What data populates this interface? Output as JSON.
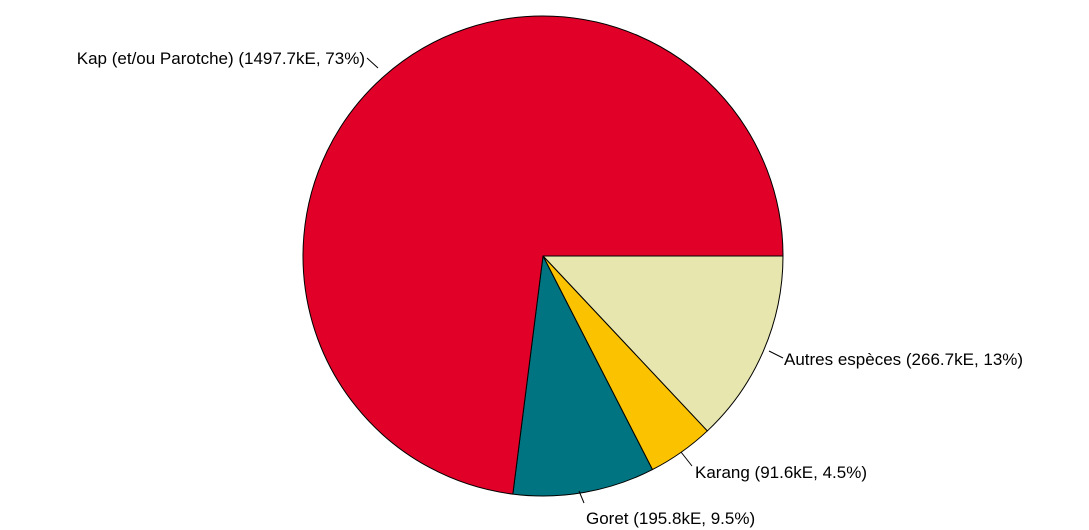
{
  "chart_data": {
    "type": "pie",
    "title": "",
    "start_angle_deg": 0,
    "direction": "clockwise",
    "slices": [
      {
        "name": "Autres espèces",
        "value": 266.7,
        "percent": 13,
        "label": "Autres espèces (266.7kE, 13%)",
        "color": "#E6E6AE"
      },
      {
        "name": "Karang",
        "value": 91.6,
        "percent": 4.5,
        "label": "Karang (91.6kE, 4.5%)",
        "color": "#FBC200"
      },
      {
        "name": "Goret",
        "value": 195.8,
        "percent": 9.5,
        "label": "Goret (195.8kE, 9.5%)",
        "color": "#007480"
      },
      {
        "name": "Kap (et/ou Parotche)",
        "value": 1497.7,
        "percent": 73,
        "label": "Kap (et/ou Parotche) (1497.7kE, 73%)",
        "color": "#E10028"
      }
    ]
  }
}
